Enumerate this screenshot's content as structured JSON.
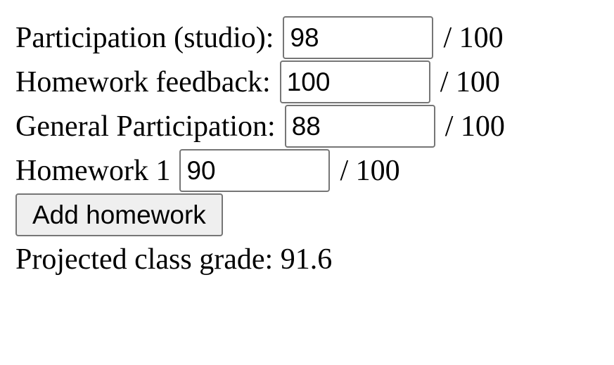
{
  "grades": [
    {
      "label": "Participation (studio):",
      "value": "98",
      "max": "/ 100"
    },
    {
      "label": "Homework feedback:",
      "value": "100",
      "max": "/ 100"
    },
    {
      "label": "General Participation:",
      "value": "88",
      "max": "/ 100"
    },
    {
      "label": "Homework 1",
      "value": "90",
      "max": "/ 100"
    }
  ],
  "add_button_label": "Add homework",
  "projected": {
    "label": "Projected class grade:",
    "value": "91.6"
  }
}
